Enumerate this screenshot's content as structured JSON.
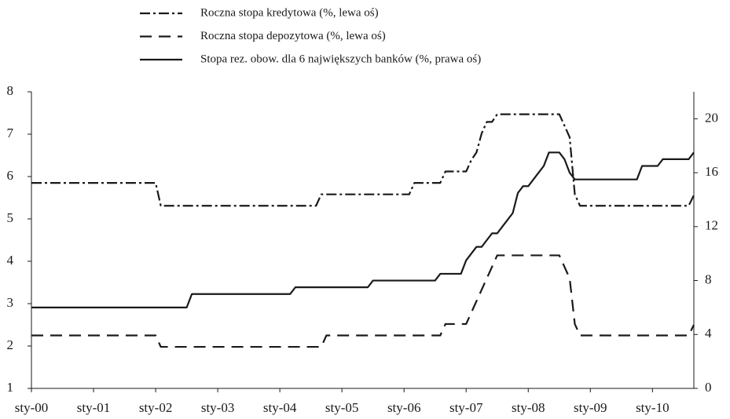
{
  "chart_data": {
    "type": "line",
    "categories": [
      "sty-00",
      null,
      null,
      null,
      null,
      null,
      null,
      null,
      null,
      null,
      null,
      null,
      "sty-01",
      null,
      null,
      null,
      null,
      null,
      null,
      null,
      null,
      null,
      null,
      null,
      "sty-02",
      null,
      null,
      null,
      null,
      null,
      null,
      null,
      null,
      null,
      null,
      null,
      "sty-03",
      null,
      null,
      null,
      null,
      null,
      null,
      null,
      null,
      null,
      null,
      null,
      "sty-04",
      null,
      null,
      null,
      null,
      null,
      null,
      null,
      null,
      null,
      null,
      null,
      "sty-05",
      null,
      null,
      null,
      null,
      null,
      null,
      null,
      null,
      null,
      null,
      null,
      "sty-06",
      null,
      null,
      null,
      null,
      null,
      null,
      null,
      null,
      null,
      null,
      null,
      "sty-07",
      null,
      null,
      null,
      null,
      null,
      null,
      null,
      null,
      null,
      null,
      null,
      "sty-08",
      null,
      null,
      null,
      null,
      null,
      null,
      null,
      null,
      null,
      null,
      null,
      "sty-09",
      null,
      null,
      null,
      null,
      null,
      null,
      null,
      null,
      null,
      null,
      null,
      "sty-10",
      null,
      null,
      null,
      null,
      null,
      null,
      null,
      null
    ],
    "series": [
      {
        "name": "Roczna stopa kredytowa (%, lewa oś)",
        "color": "#1a1a1a",
        "dash": "dashdot",
        "axis": "y",
        "values": [
          5.85,
          5.85,
          5.85,
          5.85,
          5.85,
          5.85,
          5.85,
          5.85,
          5.85,
          5.85,
          5.85,
          5.85,
          5.85,
          5.85,
          5.85,
          5.85,
          5.85,
          5.85,
          5.85,
          5.85,
          5.85,
          5.85,
          5.85,
          5.85,
          5.85,
          5.31,
          5.31,
          5.31,
          5.31,
          5.31,
          5.31,
          5.31,
          5.31,
          5.31,
          5.31,
          5.31,
          5.31,
          5.31,
          5.31,
          5.31,
          5.31,
          5.31,
          5.31,
          5.31,
          5.31,
          5.31,
          5.31,
          5.31,
          5.31,
          5.31,
          5.31,
          5.31,
          5.31,
          5.31,
          5.31,
          5.31,
          5.58,
          5.58,
          5.58,
          5.58,
          5.58,
          5.58,
          5.58,
          5.58,
          5.58,
          5.58,
          5.58,
          5.58,
          5.58,
          5.58,
          5.58,
          5.58,
          5.58,
          5.58,
          5.85,
          5.85,
          5.85,
          5.85,
          5.85,
          5.85,
          6.12,
          6.12,
          6.12,
          6.12,
          6.12,
          6.39,
          6.57,
          7.02,
          7.29,
          7.29,
          7.47,
          7.47,
          7.47,
          7.47,
          7.47,
          7.47,
          7.47,
          7.47,
          7.47,
          7.47,
          7.47,
          7.47,
          7.47,
          7.2,
          6.93,
          5.58,
          5.31,
          5.31,
          5.31,
          5.31,
          5.31,
          5.31,
          5.31,
          5.31,
          5.31,
          5.31,
          5.31,
          5.31,
          5.31,
          5.31,
          5.31,
          5.31,
          5.31,
          5.31,
          5.31,
          5.31,
          5.31,
          5.31,
          5.56
        ]
      },
      {
        "name": "Roczna stopa depozytowa (%, lewa oś)",
        "color": "#1a1a1a",
        "dash": "dashed",
        "axis": "y",
        "values": [
          2.25,
          2.25,
          2.25,
          2.25,
          2.25,
          2.25,
          2.25,
          2.25,
          2.25,
          2.25,
          2.25,
          2.25,
          2.25,
          2.25,
          2.25,
          2.25,
          2.25,
          2.25,
          2.25,
          2.25,
          2.25,
          2.25,
          2.25,
          2.25,
          2.25,
          1.98,
          1.98,
          1.98,
          1.98,
          1.98,
          1.98,
          1.98,
          1.98,
          1.98,
          1.98,
          1.98,
          1.98,
          1.98,
          1.98,
          1.98,
          1.98,
          1.98,
          1.98,
          1.98,
          1.98,
          1.98,
          1.98,
          1.98,
          1.98,
          1.98,
          1.98,
          1.98,
          1.98,
          1.98,
          1.98,
          1.98,
          1.98,
          2.25,
          2.25,
          2.25,
          2.25,
          2.25,
          2.25,
          2.25,
          2.25,
          2.25,
          2.25,
          2.25,
          2.25,
          2.25,
          2.25,
          2.25,
          2.25,
          2.25,
          2.25,
          2.25,
          2.25,
          2.25,
          2.25,
          2.25,
          2.52,
          2.52,
          2.52,
          2.52,
          2.52,
          2.79,
          3.06,
          3.33,
          3.6,
          3.87,
          4.14,
          4.14,
          4.14,
          4.14,
          4.14,
          4.14,
          4.14,
          4.14,
          4.14,
          4.14,
          4.14,
          4.14,
          4.14,
          3.87,
          3.6,
          2.52,
          2.25,
          2.25,
          2.25,
          2.25,
          2.25,
          2.25,
          2.25,
          2.25,
          2.25,
          2.25,
          2.25,
          2.25,
          2.25,
          2.25,
          2.25,
          2.25,
          2.25,
          2.25,
          2.25,
          2.25,
          2.25,
          2.25,
          2.5
        ]
      },
      {
        "name": "Stopa rez. obow. dla 6 największych banków (%, prawa oś)",
        "color": "#1a1a1a",
        "dash": "solid",
        "axis": "y2",
        "values": [
          6,
          6,
          6,
          6,
          6,
          6,
          6,
          6,
          6,
          6,
          6,
          6,
          6,
          6,
          6,
          6,
          6,
          6,
          6,
          6,
          6,
          6,
          6,
          6,
          6,
          6,
          6,
          6,
          6,
          6,
          6,
          7,
          7,
          7,
          7,
          7,
          7,
          7,
          7,
          7,
          7,
          7,
          7,
          7,
          7,
          7,
          7,
          7,
          7,
          7,
          7,
          7.5,
          7.5,
          7.5,
          7.5,
          7.5,
          7.5,
          7.5,
          7.5,
          7.5,
          7.5,
          7.5,
          7.5,
          7.5,
          7.5,
          7.5,
          8,
          8,
          8,
          8,
          8,
          8,
          8,
          8,
          8,
          8,
          8,
          8,
          8,
          8.5,
          8.5,
          8.5,
          8.5,
          8.5,
          9.5,
          10,
          10.5,
          10.5,
          11,
          11.5,
          11.5,
          12,
          12.5,
          13,
          14.5,
          15,
          15,
          15.5,
          16,
          16.5,
          17.5,
          17.5,
          17.5,
          17,
          16,
          15.5,
          15.5,
          15.5,
          15.5,
          15.5,
          15.5,
          15.5,
          15.5,
          15.5,
          15.5,
          15.5,
          15.5,
          15.5,
          16.5,
          16.5,
          16.5,
          16.5,
          17,
          17,
          17,
          17,
          17,
          17,
          17.5
        ]
      }
    ],
    "ylim": [
      1,
      8
    ],
    "yticks": [
      1,
      2,
      3,
      4,
      5,
      6,
      7,
      8
    ],
    "y2lim": [
      0,
      22
    ],
    "y2ticks": [
      0,
      4,
      8,
      12,
      16,
      20
    ],
    "grid": false
  }
}
